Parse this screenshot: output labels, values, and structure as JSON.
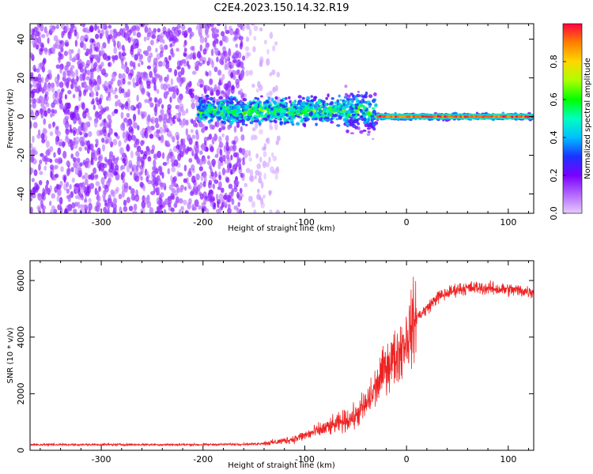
{
  "title": "C2E4.2023.150.14.32.R19",
  "chart_data": [
    {
      "type": "heatmap",
      "xlabel": "Height of straight line (km)",
      "ylabel": "Frequency (Hz)",
      "xlim": [
        -370,
        125
      ],
      "ylim": [
        -50,
        48
      ],
      "x_ticks": [
        -300,
        -200,
        -100,
        0,
        100
      ],
      "y_ticks": [
        -40,
        -20,
        0,
        20,
        40
      ],
      "colorbar": {
        "label": "Normalized spectral amplitude",
        "range": [
          0,
          1
        ],
        "ticks": [
          0.0,
          0.2,
          0.4,
          0.6,
          0.8
        ],
        "colormap": [
          "#e6ccff",
          "#b266ff",
          "#7a00ff",
          "#1a33ff",
          "#00bfff",
          "#00ffbf",
          "#00ff00",
          "#aaff00",
          "#ffd700",
          "#ff8000",
          "#ff0040"
        ]
      },
      "regions": [
        {
          "x_range": [
            -370,
            -160
          ],
          "description_values": {
            "amplitude": 0.15,
            "freq_spread_hz": 50
          }
        },
        {
          "x_range": [
            -160,
            -125
          ],
          "description_values": {
            "amplitude": 0.05,
            "freq_spread_hz": 50
          }
        },
        {
          "x_range": [
            -205,
            -30
          ],
          "description_values": {
            "amplitude": 0.3,
            "freq_center_hz": 3,
            "freq_spread_hz": 9
          }
        },
        {
          "x_range": [
            -30,
            125
          ],
          "description_values": {
            "amplitude": 0.9,
            "freq_center_hz": 0,
            "freq_spread_hz": 2
          }
        }
      ]
    },
    {
      "type": "line",
      "xlabel": "Height of straight line (km)",
      "ylabel": "SNR (10 * v/v)",
      "xlim": [
        -370,
        125
      ],
      "ylim": [
        0,
        6700
      ],
      "x_ticks": [
        -300,
        -200,
        -100,
        0,
        100
      ],
      "y_ticks": [
        0,
        2000,
        4000,
        6000
      ],
      "series": [
        {
          "color": "#ee2222",
          "x": [
            -370,
            -300,
            -200,
            -150,
            -130,
            -110,
            -90,
            -70,
            -50,
            -40,
            -30,
            -20,
            -10,
            0,
            10,
            20,
            30,
            50,
            70,
            90,
            110,
            125
          ],
          "y": [
            200,
            200,
            200,
            220,
            280,
            400,
            650,
            900,
            1200,
            1600,
            2200,
            3000,
            3300,
            4000,
            4700,
            5000,
            5400,
            5700,
            5750,
            5700,
            5650,
            5600
          ]
        }
      ]
    }
  ]
}
